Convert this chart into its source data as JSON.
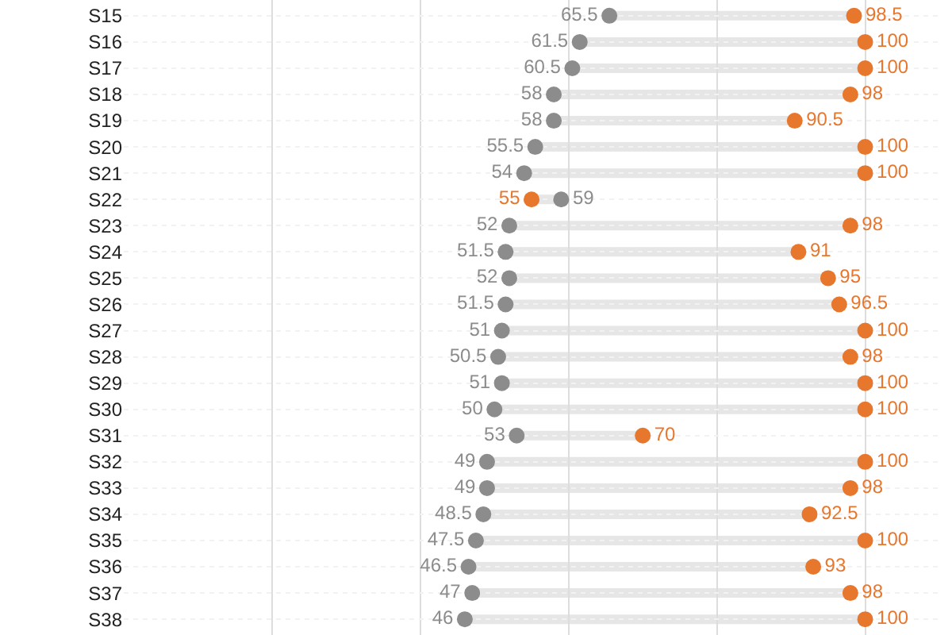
{
  "chart_data": {
    "type": "scatter",
    "orientation": "horizontal",
    "categories": [
      "S15",
      "S16",
      "S17",
      "S18",
      "S19",
      "S20",
      "S21",
      "S22",
      "S23",
      "S24",
      "S25",
      "S26",
      "S27",
      "S28",
      "S29",
      "S30",
      "S31",
      "S32",
      "S33",
      "S34",
      "S35",
      "S36",
      "S37",
      "S38"
    ],
    "series": [
      {
        "color": "#8c8c8c",
        "values": [
          65.5,
          61.5,
          60.5,
          58,
          58,
          55.5,
          54,
          59,
          52,
          51.5,
          52,
          51.5,
          51,
          50.5,
          51,
          50,
          53,
          49,
          49,
          48.5,
          47.5,
          46.5,
          47,
          46
        ]
      },
      {
        "color": "#e8772e",
        "values": [
          98.5,
          100,
          100,
          98,
          90.5,
          100,
          100,
          55,
          98,
          91,
          95,
          96.5,
          100,
          98,
          100,
          100,
          70,
          100,
          98,
          92.5,
          100,
          93,
          98,
          100
        ]
      }
    ],
    "xlim": [
      0,
      110
    ],
    "tick_labels": "y",
    "grid": true,
    "marker": "circle",
    "data_labels": true
  }
}
